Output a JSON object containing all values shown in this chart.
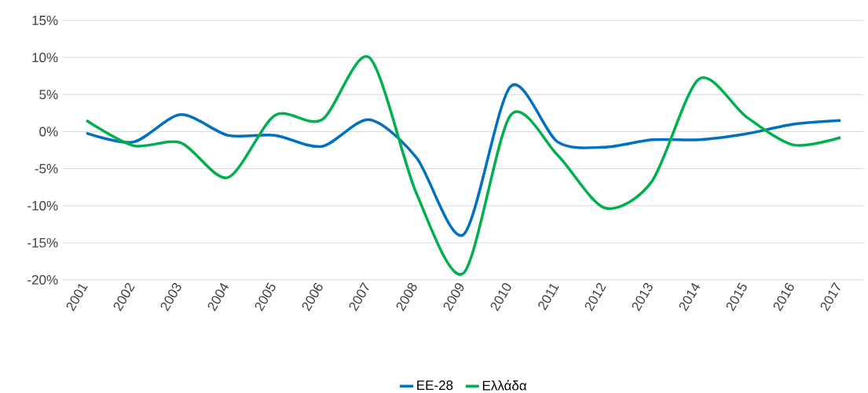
{
  "chart_data": {
    "type": "line",
    "categories": [
      "2001",
      "2002",
      "2003",
      "2004",
      "2005",
      "2006",
      "2007",
      "2008",
      "2009",
      "2010",
      "2011",
      "2012",
      "2013",
      "2014",
      "2015",
      "2016",
      "2017"
    ],
    "series": [
      {
        "name": "ΕΕ-28",
        "color": "#0070c0",
        "values": [
          -0.2,
          -1.4,
          2.3,
          -0.5,
          -0.5,
          -2.0,
          1.6,
          -3.5,
          -13.9,
          6.1,
          -1.4,
          -2.1,
          -1.1,
          -1.1,
          -0.3,
          1.0,
          1.5
        ]
      },
      {
        "name": "Ελλάδα",
        "color": "#00b050",
        "values": [
          1.5,
          -1.9,
          -1.5,
          -6.2,
          2.2,
          1.6,
          10.0,
          -8.3,
          -19.1,
          2.2,
          -3.2,
          -10.3,
          -6.7,
          7.1,
          2.0,
          -1.8,
          -0.8
        ]
      }
    ],
    "ylim": [
      -20,
      15
    ],
    "yticks": [
      {
        "value": -20,
        "label": "-20%"
      },
      {
        "value": -15,
        "label": "-15%"
      },
      {
        "value": -10,
        "label": "-10%"
      },
      {
        "value": -5,
        "label": "-5%"
      },
      {
        "value": 0,
        "label": "0%"
      },
      {
        "value": 5,
        "label": "5%"
      },
      {
        "value": 10,
        "label": "10%"
      },
      {
        "value": 15,
        "label": "15%"
      }
    ],
    "grid": "y",
    "legend": "bottom",
    "marker": "none",
    "line_style": "solid"
  }
}
